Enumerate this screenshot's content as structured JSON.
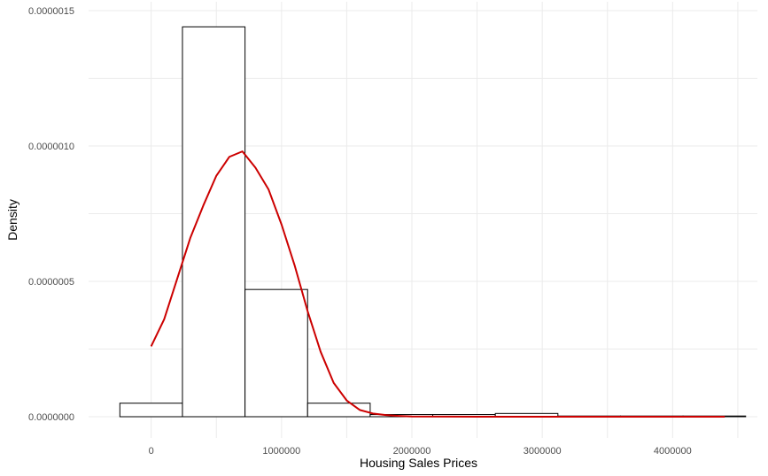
{
  "chart_data": {
    "type": "bar",
    "subtype": "histogram-with-density-curve",
    "title": "",
    "xlabel": "Housing Sales Prices",
    "ylabel": "Density",
    "xlim": [
      -480000,
      4650000
    ],
    "ylim": [
      -7.5e-08,
      1.5e-06
    ],
    "x_ticks": [
      0,
      1000000,
      2000000,
      3000000,
      4000000
    ],
    "x_tick_labels": [
      "0",
      "1000000",
      "2000000",
      "3000000",
      "4000000"
    ],
    "y_ticks": [
      0,
      5e-07,
      1e-06,
      1.5e-06
    ],
    "y_tick_labels": [
      "0.0000000",
      "0.0000005",
      "0.0000010",
      "0.0000015"
    ],
    "grid": true,
    "legend": "none",
    "bins": [
      {
        "x0": -240000,
        "x1": 240000,
        "density": 5e-08
      },
      {
        "x0": 240000,
        "x1": 720000,
        "density": 1.44e-06
      },
      {
        "x0": 720000,
        "x1": 1200000,
        "density": 4.7e-07
      },
      {
        "x0": 1200000,
        "x1": 1680000,
        "density": 5e-08
      },
      {
        "x0": 1680000,
        "x1": 2160000,
        "density": 8e-09
      },
      {
        "x0": 2160000,
        "x1": 2640000,
        "density": 8e-09
      },
      {
        "x0": 2640000,
        "x1": 3120000,
        "density": 1.2e-08
      },
      {
        "x0": 3120000,
        "x1": 3600000,
        "density": 0
      },
      {
        "x0": 3600000,
        "x1": 4080000,
        "density": 0
      },
      {
        "x0": 4080000,
        "x1": 4560000,
        "density": 2e-09
      }
    ],
    "density_curve": {
      "x": [
        0,
        100000,
        200000,
        300000,
        400000,
        500000,
        600000,
        700000,
        800000,
        900000,
        1000000,
        1100000,
        1200000,
        1300000,
        1400000,
        1500000,
        1600000,
        1700000,
        1800000,
        1900000,
        2000000,
        2500000,
        3000000,
        3500000,
        4000000,
        4400000
      ],
      "y": [
        2.6e-07,
        3.6e-07,
        5.1e-07,
        6.6e-07,
        7.8e-07,
        8.9e-07,
        9.6e-07,
        9.8e-07,
        9.2e-07,
        8.4e-07,
        7.1e-07,
        5.6e-07,
        3.9e-07,
        2.4e-07,
        1.25e-07,
        6e-08,
        2.5e-08,
        1.2e-08,
        6e-09,
        3e-09,
        1e-09,
        0,
        0,
        0,
        0,
        0
      ],
      "color": "#cc0000"
    },
    "colors": {
      "bar_fill": "#ffffff",
      "bar_stroke": "#000000",
      "grid": "#ebebeb"
    }
  }
}
